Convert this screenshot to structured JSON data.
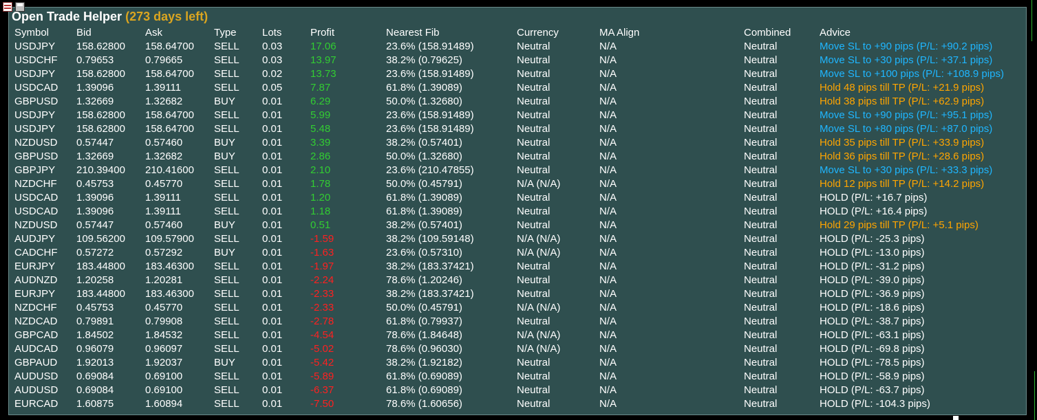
{
  "panel": {
    "title": "Open Trade Helper",
    "days_left": "(273 days left)"
  },
  "colors": {
    "panel_bg": "#2f4f4f",
    "profit_positive": "#32cd32",
    "profit_negative": "#ff2020",
    "advice_move_sl": "#1fb6ff",
    "advice_hold_tp": "#ffa500",
    "advice_hold": "#ffffff",
    "title_days": "#daa520"
  },
  "toolbar": {
    "icons": [
      "grid-icon",
      "save-icon"
    ]
  },
  "columns": [
    "Symbol",
    "Bid",
    "Ask",
    "Type",
    "Lots",
    "Profit",
    "Nearest Fib",
    "Currency",
    "MA Align",
    "Combined",
    "Advice"
  ],
  "rows": [
    {
      "symbol": "USDJPY",
      "bid": "158.62800",
      "ask": "158.64700",
      "type": "SELL",
      "lots": "0.03",
      "profit": "17.06",
      "fib": "23.6% (158.91489)",
      "currency": "Neutral",
      "ma": "N/A",
      "combined": "Neutral",
      "advice": "Move SL to +90 pips (P/L: +90.2 pips)",
      "advice_style": "blue"
    },
    {
      "symbol": "USDCHF",
      "bid": "0.79653",
      "ask": "0.79665",
      "type": "SELL",
      "lots": "0.03",
      "profit": "13.97",
      "fib": "38.2% (0.79625)",
      "currency": "Neutral",
      "ma": "N/A",
      "combined": "Neutral",
      "advice": "Move SL to +30 pips (P/L: +37.1 pips)",
      "advice_style": "blue"
    },
    {
      "symbol": "USDJPY",
      "bid": "158.62800",
      "ask": "158.64700",
      "type": "SELL",
      "lots": "0.02",
      "profit": "13.73",
      "fib": "23.6% (158.91489)",
      "currency": "Neutral",
      "ma": "N/A",
      "combined": "Neutral",
      "advice": "Move SL to +100 pips (P/L: +108.9 pips)",
      "advice_style": "blue"
    },
    {
      "symbol": "USDCAD",
      "bid": "1.39096",
      "ask": "1.39111",
      "type": "SELL",
      "lots": "0.05",
      "profit": "7.87",
      "fib": "61.8% (1.39089)",
      "currency": "Neutral",
      "ma": "N/A",
      "combined": "Neutral",
      "advice": "Hold 48 pips till TP (P/L: +21.9 pips)",
      "advice_style": "orange"
    },
    {
      "symbol": "GBPUSD",
      "bid": "1.32669",
      "ask": "1.32682",
      "type": "BUY",
      "lots": "0.01",
      "profit": "6.29",
      "fib": "50.0% (1.32680)",
      "currency": "Neutral",
      "ma": "N/A",
      "combined": "Neutral",
      "advice": "Hold 38 pips till TP (P/L: +62.9 pips)",
      "advice_style": "orange"
    },
    {
      "symbol": "USDJPY",
      "bid": "158.62800",
      "ask": "158.64700",
      "type": "SELL",
      "lots": "0.01",
      "profit": "5.99",
      "fib": "23.6% (158.91489)",
      "currency": "Neutral",
      "ma": "N/A",
      "combined": "Neutral",
      "advice": "Move SL to +90 pips (P/L: +95.1 pips)",
      "advice_style": "blue"
    },
    {
      "symbol": "USDJPY",
      "bid": "158.62800",
      "ask": "158.64700",
      "type": "SELL",
      "lots": "0.01",
      "profit": "5.48",
      "fib": "23.6% (158.91489)",
      "currency": "Neutral",
      "ma": "N/A",
      "combined": "Neutral",
      "advice": "Move SL to +80 pips (P/L: +87.0 pips)",
      "advice_style": "blue"
    },
    {
      "symbol": "NZDUSD",
      "bid": "0.57447",
      "ask": "0.57460",
      "type": "BUY",
      "lots": "0.01",
      "profit": "3.39",
      "fib": "38.2% (0.57401)",
      "currency": "Neutral",
      "ma": "N/A",
      "combined": "Neutral",
      "advice": "Hold 35 pips till TP (P/L: +33.9 pips)",
      "advice_style": "orange"
    },
    {
      "symbol": "GBPUSD",
      "bid": "1.32669",
      "ask": "1.32682",
      "type": "BUY",
      "lots": "0.01",
      "profit": "2.86",
      "fib": "50.0% (1.32680)",
      "currency": "Neutral",
      "ma": "N/A",
      "combined": "Neutral",
      "advice": "Hold 36 pips till TP (P/L: +28.6 pips)",
      "advice_style": "orange"
    },
    {
      "symbol": "GBPJPY",
      "bid": "210.39400",
      "ask": "210.41600",
      "type": "SELL",
      "lots": "0.01",
      "profit": "2.10",
      "fib": "23.6% (210.47855)",
      "currency": "Neutral",
      "ma": "N/A",
      "combined": "Neutral",
      "advice": "Move SL to +30 pips (P/L: +33.3 pips)",
      "advice_style": "blue"
    },
    {
      "symbol": "NZDCHF",
      "bid": "0.45753",
      "ask": "0.45770",
      "type": "SELL",
      "lots": "0.01",
      "profit": "1.78",
      "fib": "50.0% (0.45791)",
      "currency": "N/A (N/A)",
      "ma": "N/A",
      "combined": "Neutral",
      "advice": "Hold 12 pips till TP (P/L: +14.2 pips)",
      "advice_style": "orange"
    },
    {
      "symbol": "USDCAD",
      "bid": "1.39096",
      "ask": "1.39111",
      "type": "SELL",
      "lots": "0.01",
      "profit": "1.20",
      "fib": "61.8% (1.39089)",
      "currency": "Neutral",
      "ma": "N/A",
      "combined": "Neutral",
      "advice": "HOLD (P/L: +16.7 pips)",
      "advice_style": "white"
    },
    {
      "symbol": "USDCAD",
      "bid": "1.39096",
      "ask": "1.39111",
      "type": "SELL",
      "lots": "0.01",
      "profit": "1.18",
      "fib": "61.8% (1.39089)",
      "currency": "Neutral",
      "ma": "N/A",
      "combined": "Neutral",
      "advice": "HOLD (P/L: +16.4 pips)",
      "advice_style": "white"
    },
    {
      "symbol": "NZDUSD",
      "bid": "0.57447",
      "ask": "0.57460",
      "type": "BUY",
      "lots": "0.01",
      "profit": "0.51",
      "fib": "38.2% (0.57401)",
      "currency": "Neutral",
      "ma": "N/A",
      "combined": "Neutral",
      "advice": "Hold 29 pips till TP (P/L: +5.1 pips)",
      "advice_style": "orange"
    },
    {
      "symbol": "AUDJPY",
      "bid": "109.56200",
      "ask": "109.57900",
      "type": "SELL",
      "lots": "0.01",
      "profit": "-1.59",
      "fib": "38.2% (109.59148)",
      "currency": "N/A (N/A)",
      "ma": "N/A",
      "combined": "Neutral",
      "advice": "HOLD (P/L: -25.3 pips)",
      "advice_style": "white"
    },
    {
      "symbol": "CADCHF",
      "bid": "0.57272",
      "ask": "0.57292",
      "type": "BUY",
      "lots": "0.01",
      "profit": "-1.63",
      "fib": "23.6% (0.57310)",
      "currency": "N/A (N/A)",
      "ma": "N/A",
      "combined": "Neutral",
      "advice": "HOLD (P/L: -13.0 pips)",
      "advice_style": "white"
    },
    {
      "symbol": "EURJPY",
      "bid": "183.44800",
      "ask": "183.46300",
      "type": "SELL",
      "lots": "0.01",
      "profit": "-1.97",
      "fib": "38.2% (183.37421)",
      "currency": "Neutral",
      "ma": "N/A",
      "combined": "Neutral",
      "advice": "HOLD (P/L: -31.2 pips)",
      "advice_style": "white"
    },
    {
      "symbol": "AUDNZD",
      "bid": "1.20258",
      "ask": "1.20281",
      "type": "SELL",
      "lots": "0.01",
      "profit": "-2.24",
      "fib": "78.6% (1.20246)",
      "currency": "Neutral",
      "ma": "N/A",
      "combined": "Neutral",
      "advice": "HOLD (P/L: -39.0 pips)",
      "advice_style": "white"
    },
    {
      "symbol": "EURJPY",
      "bid": "183.44800",
      "ask": "183.46300",
      "type": "SELL",
      "lots": "0.01",
      "profit": "-2.33",
      "fib": "38.2% (183.37421)",
      "currency": "Neutral",
      "ma": "N/A",
      "combined": "Neutral",
      "advice": "HOLD (P/L: -36.9 pips)",
      "advice_style": "white"
    },
    {
      "symbol": "NZDCHF",
      "bid": "0.45753",
      "ask": "0.45770",
      "type": "SELL",
      "lots": "0.01",
      "profit": "-2.33",
      "fib": "50.0% (0.45791)",
      "currency": "N/A (N/A)",
      "ma": "N/A",
      "combined": "Neutral",
      "advice": "HOLD (P/L: -18.6 pips)",
      "advice_style": "white"
    },
    {
      "symbol": "NZDCAD",
      "bid": "0.79891",
      "ask": "0.79908",
      "type": "SELL",
      "lots": "0.01",
      "profit": "-2.78",
      "fib": "61.8% (0.79937)",
      "currency": "Neutral",
      "ma": "N/A",
      "combined": "Neutral",
      "advice": "HOLD (P/L: -38.7 pips)",
      "advice_style": "white"
    },
    {
      "symbol": "GBPCAD",
      "bid": "1.84502",
      "ask": "1.84532",
      "type": "SELL",
      "lots": "0.01",
      "profit": "-4.54",
      "fib": "78.6% (1.84648)",
      "currency": "N/A (N/A)",
      "ma": "N/A",
      "combined": "Neutral",
      "advice": "HOLD (P/L: -63.1 pips)",
      "advice_style": "white"
    },
    {
      "symbol": "AUDCAD",
      "bid": "0.96079",
      "ask": "0.96097",
      "type": "SELL",
      "lots": "0.01",
      "profit": "-5.02",
      "fib": "78.6% (0.96030)",
      "currency": "N/A (N/A)",
      "ma": "N/A",
      "combined": "Neutral",
      "advice": "HOLD (P/L: -69.8 pips)",
      "advice_style": "white"
    },
    {
      "symbol": "GBPAUD",
      "bid": "1.92013",
      "ask": "1.92037",
      "type": "BUY",
      "lots": "0.01",
      "profit": "-5.42",
      "fib": "38.2% (1.92182)",
      "currency": "Neutral",
      "ma": "N/A",
      "combined": "Neutral",
      "advice": "HOLD (P/L: -78.5 pips)",
      "advice_style": "white"
    },
    {
      "symbol": "AUDUSD",
      "bid": "0.69084",
      "ask": "0.69100",
      "type": "SELL",
      "lots": "0.01",
      "profit": "-5.89",
      "fib": "61.8% (0.69089)",
      "currency": "Neutral",
      "ma": "N/A",
      "combined": "Neutral",
      "advice": "HOLD (P/L: -58.9 pips)",
      "advice_style": "white"
    },
    {
      "symbol": "AUDUSD",
      "bid": "0.69084",
      "ask": "0.69100",
      "type": "SELL",
      "lots": "0.01",
      "profit": "-6.37",
      "fib": "61.8% (0.69089)",
      "currency": "Neutral",
      "ma": "N/A",
      "combined": "Neutral",
      "advice": "HOLD (P/L: -63.7 pips)",
      "advice_style": "white"
    },
    {
      "symbol": "EURCAD",
      "bid": "1.60875",
      "ask": "1.60894",
      "type": "SELL",
      "lots": "0.01",
      "profit": "-7.50",
      "fib": "78.6% (1.60656)",
      "currency": "Neutral",
      "ma": "N/A",
      "combined": "Neutral",
      "advice": "HOLD (P/L: -104.3 pips)",
      "advice_style": "white"
    }
  ]
}
